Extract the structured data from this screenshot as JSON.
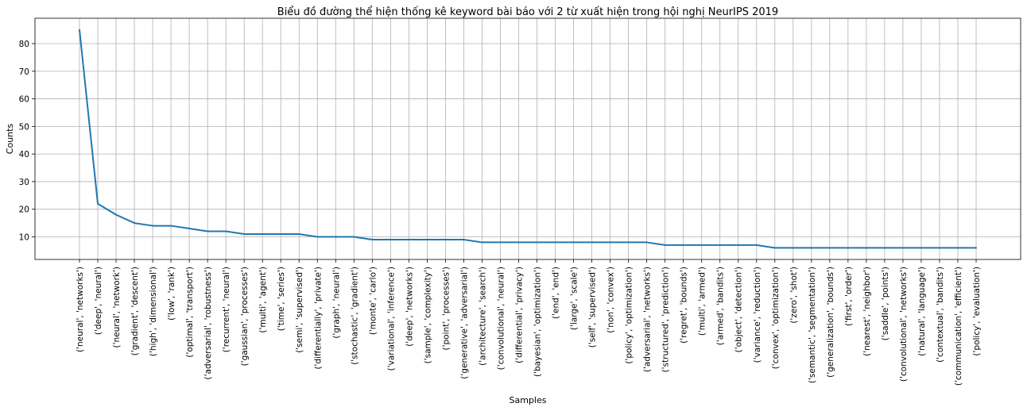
{
  "chart_data": {
    "type": "line",
    "title": "Biểu đồ đường thể hiện thống kê keyword bài báo với 2 từ xuất hiện trong hội nghị NeurIPS 2019",
    "xlabel": "Samples",
    "ylabel": "Counts",
    "ylim": [
      1.8,
      89.2
    ],
    "yticks": [
      10,
      20,
      30,
      40,
      50,
      60,
      70,
      80
    ],
    "grid": true,
    "series_color": "#1f77b4",
    "categories": [
      "('neural', 'networks')",
      "('deep', 'neural')",
      "('neural', 'network')",
      "('gradient', 'descent')",
      "('high', 'dimensional')",
      "('low', 'rank')",
      "('optimal', 'transport')",
      "('adversarial', 'robustness')",
      "('recurrent', 'neural')",
      "('gaussian', 'processes')",
      "('multi', 'agent')",
      "('time', 'series')",
      "('semi', 'supervised')",
      "('differentially', 'private')",
      "('graph', 'neural')",
      "('stochastic', 'gradient')",
      "('monte', 'carlo')",
      "('variational', 'inference')",
      "('deep', 'networks')",
      "('sample', 'complexity')",
      "('point', 'processes')",
      "('generative', 'adversarial')",
      "('architecture', 'search')",
      "('convolutional', 'neural')",
      "('differential', 'privacy')",
      "('bayesian', 'optimization')",
      "('end', 'end')",
      "('large', 'scale')",
      "('self', 'supervised')",
      "('non', 'convex')",
      "('policy', 'optimization')",
      "('adversarial', 'networks')",
      "('structured', 'prediction')",
      "('regret', 'bounds')",
      "('multi', 'armed')",
      "('armed', 'bandits')",
      "('object', 'detection')",
      "('variance', 'reduction')",
      "('convex', 'optimization')",
      "('zero', 'shot')",
      "('semantic', 'segmentation')",
      "('generalization', 'bounds')",
      "('first', 'order')",
      "('nearest', 'neighbor')",
      "('saddle', 'points')",
      "('convolutional', 'networks')",
      "('natural', 'language')",
      "('contextual', 'bandits')",
      "('communication', 'efficient')",
      "('policy', 'evaluation')"
    ],
    "values": [
      85,
      22,
      18,
      15,
      14,
      14,
      13,
      12,
      12,
      11,
      11,
      11,
      11,
      10,
      10,
      10,
      9,
      9,
      9,
      9,
      9,
      9,
      8,
      8,
      8,
      8,
      8,
      8,
      8,
      8,
      8,
      8,
      7,
      7,
      7,
      7,
      7,
      7,
      6,
      6,
      6,
      6,
      6,
      6,
      6,
      6,
      6,
      6,
      6,
      6
    ]
  }
}
